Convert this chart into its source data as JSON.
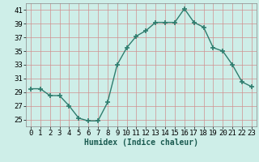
{
  "x": [
    0,
    1,
    2,
    3,
    4,
    5,
    6,
    7,
    8,
    9,
    10,
    11,
    12,
    13,
    14,
    15,
    16,
    17,
    18,
    19,
    20,
    21,
    22,
    23
  ],
  "y": [
    29.5,
    29.5,
    28.5,
    28.5,
    27.0,
    25.2,
    24.8,
    24.8,
    27.5,
    33.0,
    35.5,
    37.2,
    38.0,
    39.2,
    39.2,
    39.2,
    41.2,
    39.2,
    38.5,
    35.5,
    35.0,
    33.0,
    30.5,
    29.8
  ],
  "line_color": "#2e7d6e",
  "marker": "+",
  "marker_size": 4,
  "bg_color": "#ceeee8",
  "grid_color": "#d09090",
  "xlabel": "Humidex (Indice chaleur)",
  "ylim": [
    24,
    42
  ],
  "xlim": [
    -0.5,
    23.5
  ],
  "yticks": [
    25,
    27,
    29,
    31,
    33,
    35,
    37,
    39,
    41
  ],
  "xticks": [
    0,
    1,
    2,
    3,
    4,
    5,
    6,
    7,
    8,
    9,
    10,
    11,
    12,
    13,
    14,
    15,
    16,
    17,
    18,
    19,
    20,
    21,
    22,
    23
  ],
  "xlabel_fontsize": 7,
  "tick_fontsize": 6.5,
  "line_width": 1.0,
  "marker_color": "#2e7d6e"
}
